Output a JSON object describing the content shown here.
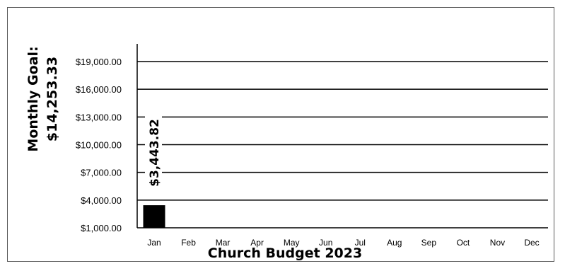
{
  "chart_data": {
    "type": "bar",
    "categories": [
      "Jan",
      "Feb",
      "Mar",
      "Apr",
      "May",
      "Jun",
      "Jul",
      "Aug",
      "Sep",
      "Oct",
      "Nov",
      "Dec"
    ],
    "values": [
      3443.82,
      null,
      null,
      null,
      null,
      null,
      null,
      null,
      null,
      null,
      null,
      null
    ],
    "data_labels": [
      "$3,443.82"
    ],
    "xlabel": "Church Budget 2023",
    "ylabel_lines": [
      "Monthly Goal:",
      "$14,253.33"
    ],
    "ylim": [
      1000,
      19000
    ],
    "y_ticks": [
      1000,
      4000,
      7000,
      10000,
      13000,
      16000,
      19000
    ],
    "y_tick_labels": [
      "$1,000.00",
      "$4,000.00",
      "$7,000.00",
      "$10,000.00",
      "$13,000.00",
      "$16,000.00",
      "$19,000.00"
    ],
    "grid": true,
    "legend": "none",
    "colors": {
      "bar": "#000000",
      "grid": "#000000",
      "frame": "#595959"
    }
  }
}
